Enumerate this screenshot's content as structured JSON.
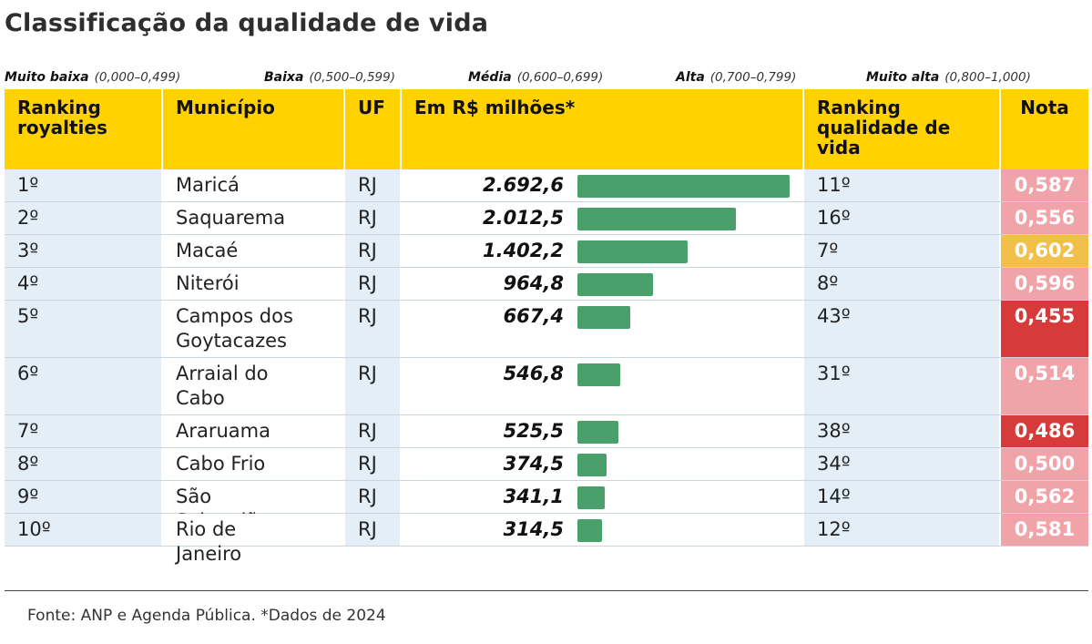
{
  "title": "Classificação da qualidade de vida",
  "legend": [
    {
      "label": "Muito baixa",
      "range": "(0,000–0,499)",
      "color": "#d63a3a"
    },
    {
      "label": "Baixa",
      "range": "(0,500–0,599)",
      "color": "#f0a3a8"
    },
    {
      "label": "Média",
      "range": "(0,600–0,699)",
      "color": "#f2c04a"
    },
    {
      "label": "Alta",
      "range": "(0,700–0,799)",
      "color": ""
    },
    {
      "label": "Muito alta",
      "range": "(0,800–1,000)",
      "color": ""
    }
  ],
  "columns": {
    "rank_royalties": "Ranking royalties",
    "municipio": "Município",
    "uf": "UF",
    "valor": "Em R$ milhões*",
    "rank_qualidade": "Ranking qualidade de vida",
    "nota": "Nota"
  },
  "chart_data": {
    "type": "bar",
    "title": "Classificação da qualidade de vida",
    "categories": [
      "Maricá",
      "Saquarema",
      "Macaé",
      "Niterói",
      "Campos dos Goytacazes",
      "Arraial do Cabo",
      "Araruama",
      "Cabo Frio",
      "São Sebastião",
      "Rio de Janeiro"
    ],
    "series": [
      {
        "name": "Em R$ milhões*",
        "values": [
          2692.6,
          2012.5,
          1402.2,
          964.8,
          667.4,
          546.8,
          525.5,
          374.5,
          341.1,
          314.5
        ]
      }
    ],
    "rows": [
      {
        "rank": "1º",
        "municipio": "Maricá",
        "uf": "RJ",
        "valor": 2692.6,
        "valor_label": "2.692,6",
        "rank_qv": "11º",
        "nota": "0,587",
        "nota_color": "#f0a3a8"
      },
      {
        "rank": "2º",
        "municipio": "Saquarema",
        "uf": "RJ",
        "valor": 2012.5,
        "valor_label": "2.012,5",
        "rank_qv": "16º",
        "nota": "0,556",
        "nota_color": "#f0a3a8"
      },
      {
        "rank": "3º",
        "municipio": "Macaé",
        "uf": "RJ",
        "valor": 1402.2,
        "valor_label": "1.402,2",
        "rank_qv": "7º",
        "nota": "0,602",
        "nota_color": "#f2c04a"
      },
      {
        "rank": "4º",
        "municipio": "Niterói",
        "uf": "RJ",
        "valor": 964.8,
        "valor_label": "964,8",
        "rank_qv": "8º",
        "nota": "0,596",
        "nota_color": "#f0a3a8"
      },
      {
        "rank": "5º",
        "municipio": "Campos dos Goytacazes",
        "uf": "RJ",
        "valor": 667.4,
        "valor_label": "667,4",
        "rank_qv": "43º",
        "nota": "0,455",
        "nota_color": "#d63a3a"
      },
      {
        "rank": "6º",
        "municipio": "Arraial do Cabo",
        "uf": "RJ",
        "valor": 546.8,
        "valor_label": "546,8",
        "rank_qv": "31º",
        "nota": "0,514",
        "nota_color": "#f0a3a8"
      },
      {
        "rank": "7º",
        "municipio": "Araruama",
        "uf": "RJ",
        "valor": 525.5,
        "valor_label": "525,5",
        "rank_qv": "38º",
        "nota": "0,486",
        "nota_color": "#d63a3a"
      },
      {
        "rank": "8º",
        "municipio": "Cabo Frio",
        "uf": "RJ",
        "valor": 374.5,
        "valor_label": "374,5",
        "rank_qv": "34º",
        "nota": "0,500",
        "nota_color": "#f0a3a8"
      },
      {
        "rank": "9º",
        "municipio": "São Sebastião",
        "uf": "RJ",
        "valor": 341.1,
        "valor_label": "341,1",
        "rank_qv": "14º",
        "nota": "0,562",
        "nota_color": "#f0a3a8"
      },
      {
        "rank": "10º",
        "municipio": "Rio de Janeiro",
        "uf": "RJ",
        "valor": 314.5,
        "valor_label": "314,5",
        "rank_qv": "12º",
        "nota": "0,581",
        "nota_color": "#f0a3a8"
      }
    ],
    "bar_color": "#4aa06b",
    "header_color": "#ffd200"
  },
  "source": "Fonte: ANP e Agenda Pública. *Dados de 2024"
}
